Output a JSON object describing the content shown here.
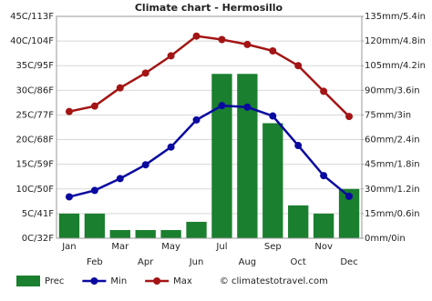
{
  "chart_data": {
    "type": "bar-line",
    "title": "Climate chart - Hermosillo",
    "categories": [
      "Jan",
      "Feb",
      "Mar",
      "Apr",
      "May",
      "Jun",
      "Jul",
      "Aug",
      "Sep",
      "Oct",
      "Nov",
      "Dec"
    ],
    "series": [
      {
        "name": "Prec",
        "type": "bar",
        "axis": "y2",
        "color": "#1a7f2e",
        "values": [
          15,
          15,
          5,
          5,
          5,
          10,
          100,
          100,
          70,
          20,
          15,
          30
        ]
      },
      {
        "name": "Min",
        "type": "line",
        "axis": "y",
        "color": "#0a0aa0",
        "values": [
          8.4,
          9.7,
          12.1,
          14.9,
          18.5,
          24,
          26.9,
          26.6,
          24.8,
          18.8,
          12.7,
          8.5
        ]
      },
      {
        "name": "Max",
        "type": "line",
        "axis": "y",
        "color": "#a31515",
        "values": [
          25.7,
          26.8,
          30.5,
          33.5,
          37,
          41,
          40.3,
          39.3,
          38,
          35,
          29.8,
          24.7
        ]
      }
    ],
    "ylim": [
      0,
      45
    ],
    "yticks": [
      {
        "value": 0,
        "label": "0C/32F"
      },
      {
        "value": 5,
        "label": "5C/41F"
      },
      {
        "value": 10,
        "label": "10C/50F"
      },
      {
        "value": 15,
        "label": "15C/59F"
      },
      {
        "value": 20,
        "label": "20C/68F"
      },
      {
        "value": 25,
        "label": "25C/77F"
      },
      {
        "value": 30,
        "label": "30C/86F"
      },
      {
        "value": 35,
        "label": "35C/95F"
      },
      {
        "value": 40,
        "label": "40C/104F"
      },
      {
        "value": 45,
        "label": "45C/113F"
      }
    ],
    "y2lim": [
      0,
      135
    ],
    "y2ticks": [
      {
        "value": 0,
        "label": "0mm/0in"
      },
      {
        "value": 15,
        "label": "15mm/0.6in"
      },
      {
        "value": 30,
        "label": "30mm/1.2in"
      },
      {
        "value": 45,
        "label": "45mm/1.8in"
      },
      {
        "value": 60,
        "label": "60mm/2.4in"
      },
      {
        "value": 75,
        "label": "75mm/3in"
      },
      {
        "value": 90,
        "label": "90mm/3.6in"
      },
      {
        "value": 105,
        "label": "105mm/4.2in"
      },
      {
        "value": 120,
        "label": "120mm/4.8in"
      },
      {
        "value": 135,
        "label": "135mm/5.4in"
      }
    ],
    "grid": true,
    "watermark": "© climatestotravel.com"
  }
}
